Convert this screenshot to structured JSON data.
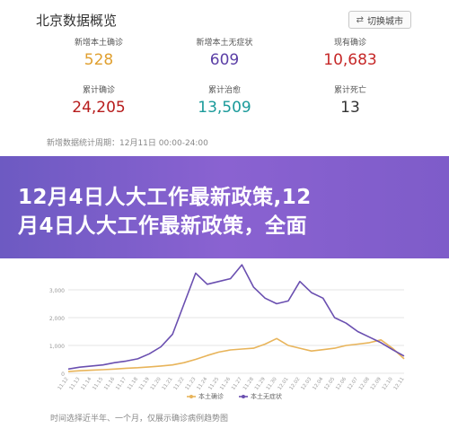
{
  "header": {
    "title": "北京数据概览",
    "switch_label": "切换城市"
  },
  "stats": [
    [
      {
        "label": "新增本土确诊",
        "value": "528",
        "color": "#e0a030"
      },
      {
        "label": "新增本土无症状",
        "value": "609",
        "color": "#5b3fa6"
      },
      {
        "label": "现有确诊",
        "value": "10,683",
        "color": "#c62828"
      }
    ],
    [
      {
        "label": "累计确诊",
        "value": "24,205",
        "color": "#b71c1c"
      },
      {
        "label": "累计治愈",
        "value": "13,509",
        "color": "#1a9a9a"
      },
      {
        "label": "累计死亡",
        "value": "13",
        "color": "#333333"
      }
    ]
  ],
  "period_note": "新增数据统计周期：12月11日 00:00-24:00",
  "banner": {
    "line1": "12月4日人大工作最新政策,12",
    "line2": "月4日人大工作最新政策，全面"
  },
  "chart_data": {
    "type": "line",
    "y_ticks": [
      "0",
      "1,000",
      "2,000",
      "3,000"
    ],
    "x_ticks": [
      "11.12",
      "11.13",
      "11.14",
      "11.15",
      "11.16",
      "11.17",
      "11.18",
      "11.19",
      "11.20",
      "11.21",
      "11.22",
      "11.23",
      "11.24",
      "11.25",
      "11.26",
      "11.27",
      "11.28",
      "11.29",
      "11.30",
      "12.01",
      "12.02",
      "12.03",
      "12.04",
      "12.05",
      "12.06",
      "12.07",
      "12.08",
      "12.09",
      "12.10",
      "12.11"
    ],
    "ylim": [
      0,
      4000
    ],
    "series": [
      {
        "name": "本土确诊",
        "color": "#e8b45a",
        "values": [
          60,
          90,
          110,
          130,
          150,
          180,
          200,
          230,
          260,
          300,
          380,
          500,
          640,
          760,
          840,
          870,
          900,
          1050,
          1250,
          1000,
          900,
          800,
          850,
          900,
          1000,
          1050,
          1100,
          1200,
          900,
          520
        ]
      },
      {
        "name": "本土无症状",
        "color": "#6a4fb0",
        "values": [
          150,
          220,
          260,
          300,
          380,
          440,
          520,
          700,
          950,
          1400,
          2500,
          3600,
          3200,
          3300,
          3400,
          3900,
          3100,
          2700,
          2500,
          2600,
          3300,
          2900,
          2700,
          2000,
          1800,
          1500,
          1300,
          1100,
          850,
          620
        ]
      }
    ],
    "legend": "bottom"
  },
  "bottom_note": "时间选择近半年、一个月，仅展示确诊病例趋势图"
}
